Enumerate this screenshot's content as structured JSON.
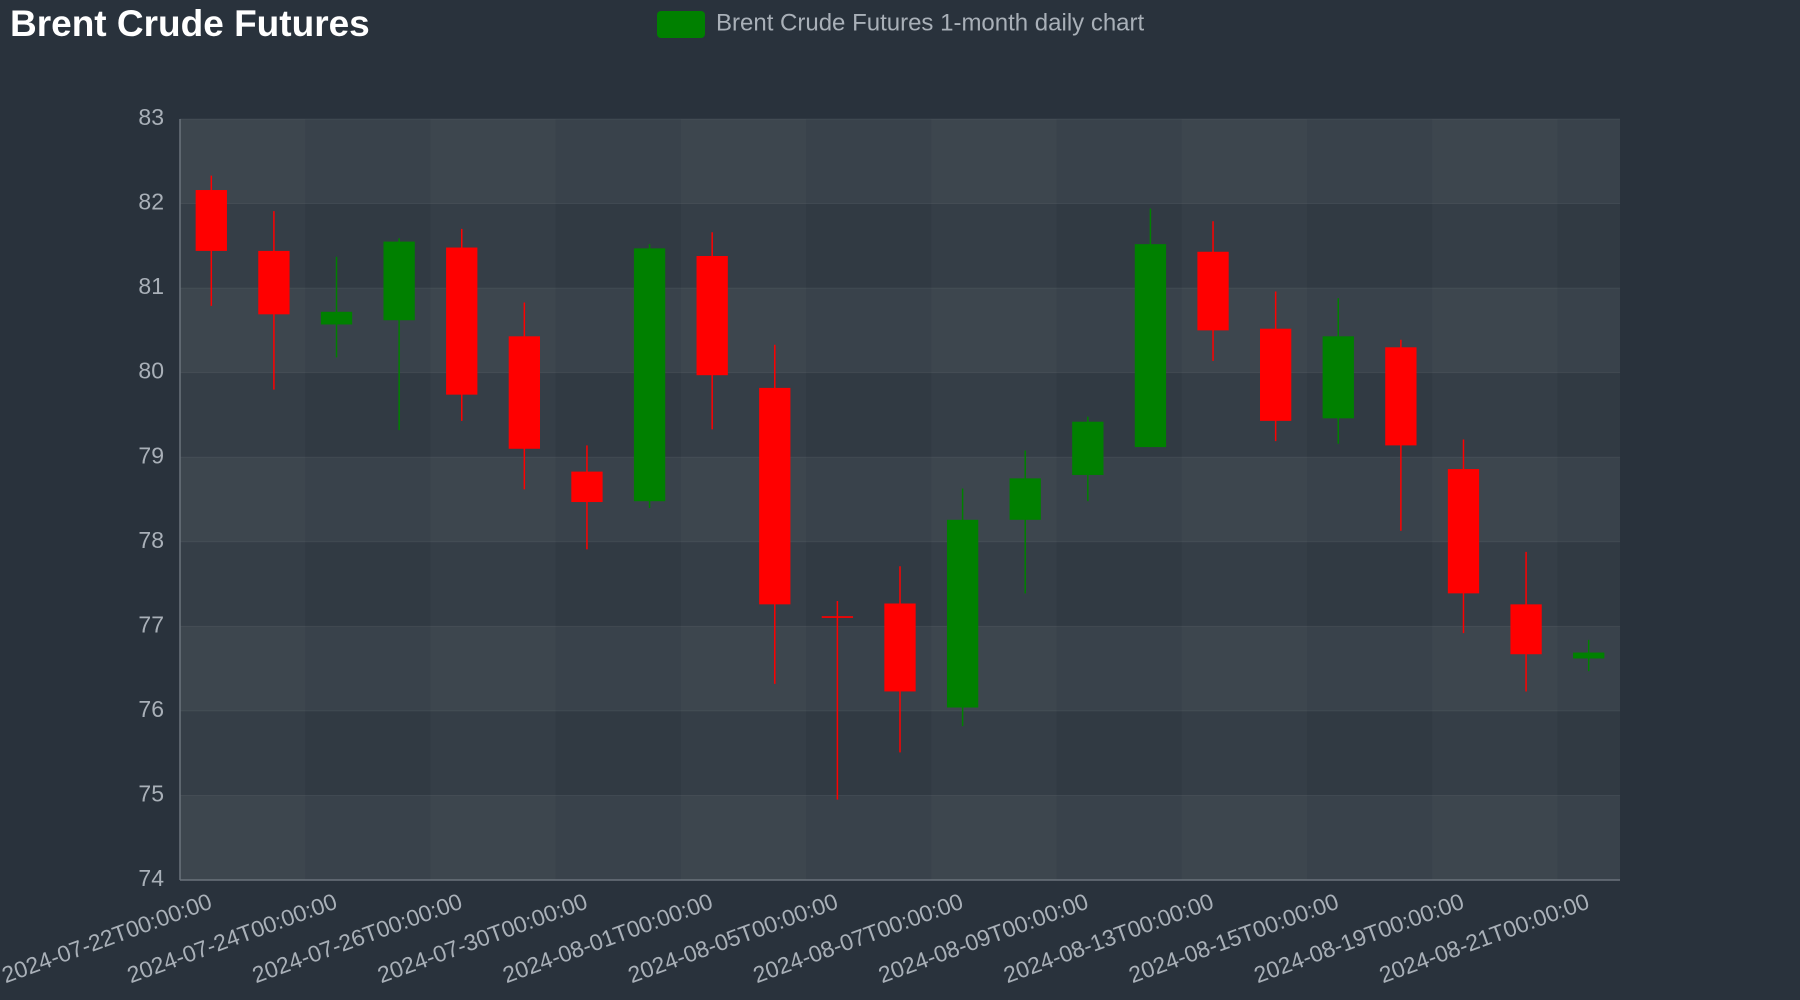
{
  "chart_data": {
    "type": "candlestick",
    "title": "Brent Crude Futures",
    "legend": "top",
    "categories": [
      "2024-07-22T00:00:00",
      null,
      "2024-07-24T00:00:00",
      null,
      "2024-07-26T00:00:00",
      null,
      "2024-07-30T00:00:00",
      null,
      "2024-08-01T00:00:00",
      null,
      "2024-08-05T00:00:00",
      null,
      "2024-08-07T00:00:00",
      null,
      "2024-08-09T00:00:00",
      null,
      "2024-08-13T00:00:00",
      null,
      "2024-08-15T00:00:00",
      null,
      "2024-08-19T00:00:00",
      null,
      "2024-08-21T00:00:00"
    ],
    "series": [
      {
        "name": "Brent Crude Futures 1-month daily chart",
        "up_color": "#008000",
        "down_color": "#ff0000",
        "open": [
          82.16,
          81.44,
          80.57,
          80.62,
          81.48,
          80.43,
          78.83,
          78.48,
          81.38,
          79.82,
          77.12,
          77.27,
          76.04,
          78.26,
          78.79,
          79.12,
          81.43,
          80.52,
          79.46,
          80.3,
          78.86,
          77.26,
          76.62
        ],
        "high": [
          82.33,
          81.91,
          81.37,
          81.59,
          81.7,
          80.83,
          79.14,
          81.52,
          81.66,
          80.33,
          77.3,
          77.71,
          78.63,
          79.08,
          79.48,
          81.94,
          81.79,
          80.96,
          80.88,
          80.39,
          79.21,
          77.88,
          76.84
        ],
        "low": [
          80.79,
          79.8,
          80.18,
          79.32,
          79.43,
          78.62,
          77.91,
          78.4,
          79.33,
          76.32,
          74.95,
          75.51,
          75.82,
          77.39,
          78.48,
          79.12,
          80.14,
          79.19,
          79.16,
          78.13,
          76.92,
          76.23,
          76.47
        ],
        "close": [
          81.44,
          80.69,
          80.72,
          81.55,
          79.74,
          79.1,
          78.47,
          81.47,
          79.97,
          77.26,
          77.1,
          76.23,
          78.26,
          78.75,
          79.42,
          81.52,
          80.5,
          79.43,
          80.43,
          79.14,
          77.39,
          76.67,
          76.69
        ]
      }
    ],
    "ylim": [
      74,
      83
    ],
    "yticks": [
      74,
      75,
      76,
      77,
      78,
      79,
      80,
      81,
      82,
      83
    ],
    "grid": true
  }
}
